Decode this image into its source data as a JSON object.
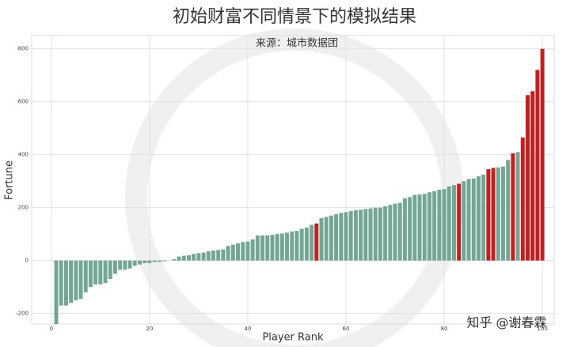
{
  "chart_data": {
    "type": "bar",
    "title": "初始财富不同情景下的模拟结果",
    "subtitle": "来源：城市数据团",
    "x_label": "Player Rank",
    "y_label": "Fortune",
    "watermark": "知乎 @谢春霖",
    "x": [
      1,
      2,
      3,
      4,
      5,
      6,
      7,
      8,
      9,
      10,
      11,
      12,
      13,
      14,
      15,
      16,
      17,
      18,
      19,
      20,
      21,
      22,
      23,
      24,
      25,
      26,
      27,
      28,
      29,
      30,
      31,
      32,
      33,
      34,
      35,
      36,
      37,
      38,
      39,
      40,
      41,
      42,
      43,
      44,
      45,
      46,
      47,
      48,
      49,
      50,
      51,
      52,
      53,
      54,
      55,
      56,
      57,
      58,
      59,
      60,
      61,
      62,
      63,
      64,
      65,
      66,
      67,
      68,
      69,
      70,
      71,
      72,
      73,
      74,
      75,
      76,
      77,
      78,
      79,
      80,
      81,
      82,
      83,
      84,
      85,
      86,
      87,
      88,
      89,
      90,
      91,
      92,
      93,
      94,
      95,
      96,
      97,
      98,
      99,
      100
    ],
    "values": [
      -240,
      -170,
      -170,
      -160,
      -150,
      -145,
      -120,
      -100,
      -90,
      -90,
      -85,
      -70,
      -50,
      -35,
      -35,
      -30,
      -20,
      -15,
      -10,
      -10,
      -5,
      -5,
      -3,
      0,
      5,
      15,
      18,
      20,
      25,
      28,
      30,
      35,
      38,
      40,
      42,
      55,
      60,
      65,
      70,
      72,
      80,
      95,
      95,
      95,
      97,
      100,
      102,
      105,
      110,
      112,
      120,
      125,
      135,
      140,
      160,
      165,
      170,
      175,
      180,
      183,
      187,
      190,
      192,
      195,
      197,
      200,
      200,
      205,
      210,
      215,
      218,
      235,
      240,
      248,
      250,
      252,
      258,
      262,
      268,
      270,
      280,
      285,
      290,
      300,
      308,
      310,
      318,
      325,
      345,
      350,
      352,
      355,
      380,
      405,
      410,
      465,
      625,
      640,
      720,
      800
    ],
    "bar_colors": [
      "#72a893",
      "#72a893",
      "#72a893",
      "#72a893",
      "#72a893",
      "#72a893",
      "#72a893",
      "#72a893",
      "#72a893",
      "#72a893",
      "#72a893",
      "#72a893",
      "#72a893",
      "#72a893",
      "#72a893",
      "#72a893",
      "#72a893",
      "#72a893",
      "#72a893",
      "#72a893",
      "#72a893",
      "#72a893",
      "#72a893",
      "#72a893",
      "#72a893",
      "#72a893",
      "#72a893",
      "#72a893",
      "#72a893",
      "#72a893",
      "#72a893",
      "#72a893",
      "#72a893",
      "#72a893",
      "#72a893",
      "#72a893",
      "#72a893",
      "#72a893",
      "#72a893",
      "#72a893",
      "#72a893",
      "#72a893",
      "#72a893",
      "#72a893",
      "#72a893",
      "#72a893",
      "#72a893",
      "#72a893",
      "#72a893",
      "#72a893",
      "#72a893",
      "#72a893",
      "#72a893",
      "#c41e1e",
      "#72a893",
      "#72a893",
      "#72a893",
      "#72a893",
      "#72a893",
      "#72a893",
      "#72a893",
      "#72a893",
      "#72a893",
      "#72a893",
      "#72a893",
      "#72a893",
      "#72a893",
      "#72a893",
      "#72a893",
      "#72a893",
      "#72a893",
      "#72a893",
      "#72a893",
      "#72a893",
      "#72a893",
      "#72a893",
      "#72a893",
      "#72a893",
      "#72a893",
      "#72a893",
      "#72a893",
      "#72a893",
      "#c41e1e",
      "#72a893",
      "#72a893",
      "#72a893",
      "#72a893",
      "#72a893",
      "#c41e1e",
      "#c41e1e",
      "#72a893",
      "#72a893",
      "#72a893",
      "#c41e1e",
      "#72a893",
      "#c41e1e",
      "#c41e1e",
      "#c41e1e",
      "#c41e1e",
      "#c41e1e"
    ],
    "xlim": [
      -4,
      102.4
    ],
    "xticks": [
      0,
      20,
      40,
      60,
      80,
      100
    ],
    "ylim": [
      -240,
      850
    ],
    "yticks": [
      -200,
      0,
      200,
      400,
      600,
      800
    ],
    "grid": true
  }
}
